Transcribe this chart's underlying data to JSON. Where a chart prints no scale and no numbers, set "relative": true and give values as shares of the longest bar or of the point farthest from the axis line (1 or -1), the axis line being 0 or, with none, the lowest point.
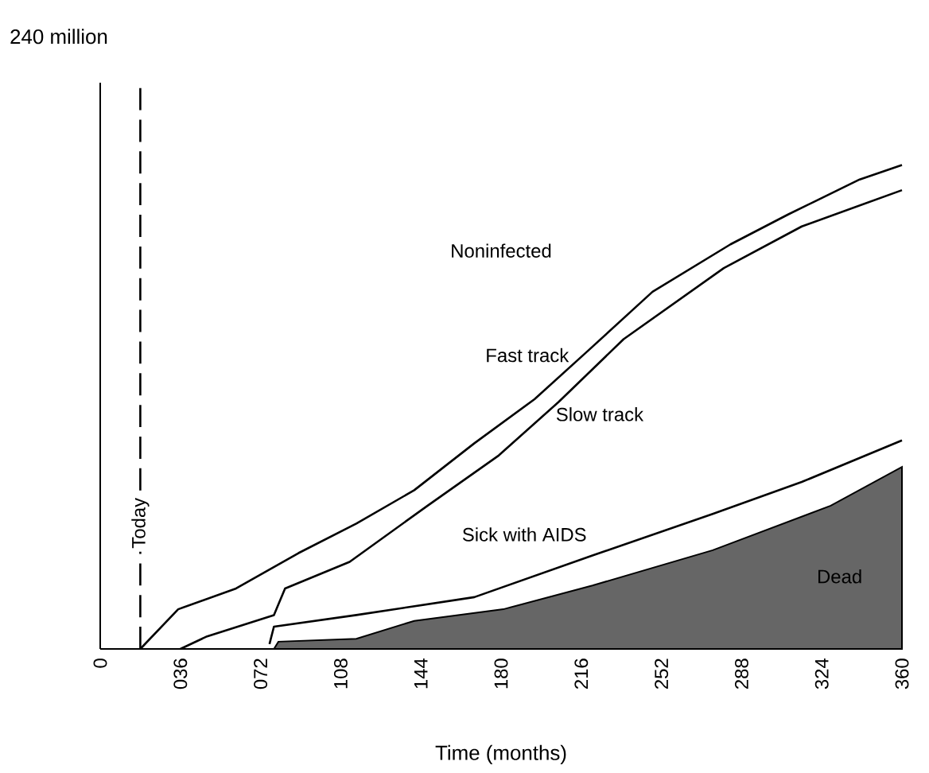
{
  "chart_data": {
    "type": "line",
    "relative": true,
    "xlabel": "Time (months)",
    "xlim": [
      0,
      360
    ],
    "xticks": [
      0,
      {
        "value": 36,
        "label": "036"
      },
      {
        "value": 72,
        "label": "072"
      },
      108,
      144,
      180,
      216,
      252,
      288,
      324,
      360
    ],
    "annotations": [
      "Noninfected",
      "240 million"
    ],
    "ref_lines": [
      {
        "axis": "x",
        "value": 18,
        "label": "Today",
        "line_style": "dashed",
        "color": "#000000"
      }
    ],
    "marker": "none",
    "line_style": "solid",
    "series": [
      {
        "name": "Fast track",
        "color": "#000000",
        "x": [
          18,
          35,
          61,
          89,
          115,
          141,
          168,
          195,
          219,
          248,
          283,
          309,
          341,
          360
        ],
        "values": [
          0,
          0.082,
          0.125,
          0.198,
          0.259,
          0.328,
          0.425,
          0.516,
          0.616,
          0.738,
          0.836,
          0.898,
          0.97,
          1
        ]
      },
      {
        "name": "Slow track",
        "color": "#000000",
        "x": [
          36,
          48,
          78,
          83,
          112,
          147,
          179,
          206,
          235,
          280,
          315,
          360
        ],
        "values": [
          0,
          0.026,
          0.07,
          0.125,
          0.18,
          0.296,
          0.4,
          0.511,
          0.64,
          0.787,
          0.873,
          0.948
        ]
      },
      {
        "name": "Sick with AIDS",
        "color": "#000000",
        "x": [
          76,
          78,
          115,
          168,
          221,
          275,
          315,
          360
        ],
        "values": [
          0.01,
          0.046,
          0.07,
          0.107,
          0.193,
          0.279,
          0.345,
          0.431
        ]
      },
      {
        "name": "Dead",
        "type": "area",
        "color": "#666666",
        "x": [
          78,
          80,
          115,
          141,
          181,
          221,
          275,
          328,
          360
        ],
        "values": [
          0,
          0.015,
          0.021,
          0.058,
          0.082,
          0.131,
          0.204,
          0.296,
          0.376
        ]
      }
    ]
  }
}
